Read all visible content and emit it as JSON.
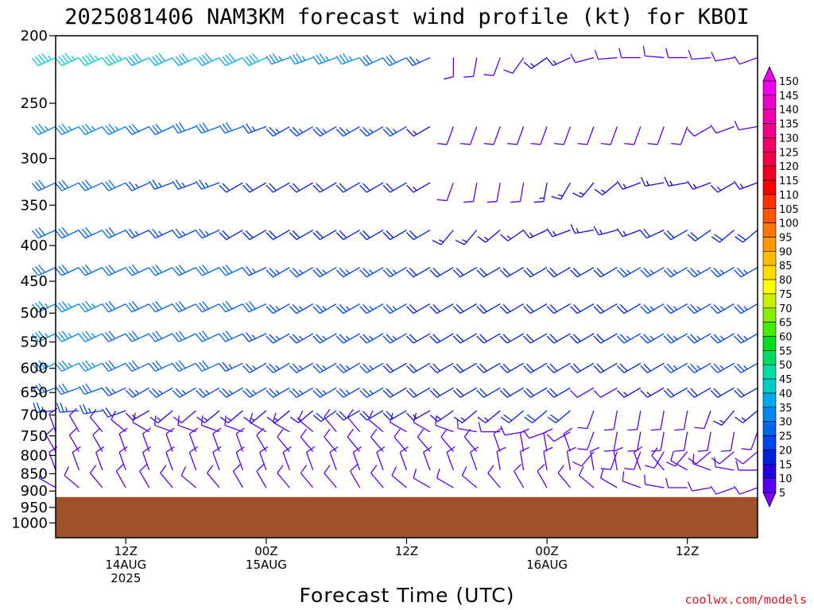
{
  "header": {
    "title": "2025081406 NAM3KM forecast wind profile (kt) for KBOI"
  },
  "footer": {
    "credit": "coolwx.com/models"
  },
  "colors": {
    "terrain": "#a0522d",
    "frame": "#000000",
    "credit": "#e0151b"
  },
  "chart_data": {
    "type": "wind-barb-time-height",
    "x_axis": {
      "label": "Forecast Time (UTC)",
      "range_hours": [
        0,
        60
      ],
      "ticks": [
        {
          "hour": 6,
          "lines": [
            "12Z",
            "14AUG",
            "2025"
          ]
        },
        {
          "hour": 18,
          "lines": [
            "00Z",
            "15AUG"
          ]
        },
        {
          "hour": 30,
          "lines": [
            "12Z"
          ]
        },
        {
          "hour": 42,
          "lines": [
            "00Z",
            "16AUG"
          ]
        },
        {
          "hour": 54,
          "lines": [
            "12Z"
          ]
        }
      ]
    },
    "y_axis": {
      "label": "",
      "units": "hPa",
      "scale": "log",
      "inverted": true,
      "range": [
        1050,
        200
      ],
      "ticks": [
        200,
        250,
        300,
        350,
        400,
        450,
        500,
        550,
        600,
        650,
        700,
        750,
        800,
        850,
        900,
        950,
        1000
      ]
    },
    "surface_pressure_hPa": 918,
    "colorbar": {
      "units": "kt",
      "levels": [
        5,
        10,
        15,
        20,
        25,
        30,
        35,
        40,
        45,
        50,
        55,
        60,
        65,
        70,
        75,
        80,
        85,
        90,
        95,
        100,
        105,
        110,
        115,
        120,
        125,
        130,
        135,
        140,
        145,
        150
      ],
      "colors": [
        "#7f00ff",
        "#5a00f2",
        "#2200dd",
        "#0022dd",
        "#0044ee",
        "#0066ee",
        "#0088ee",
        "#00aaee",
        "#00cccc",
        "#00ddaa",
        "#00dd66",
        "#00dd22",
        "#44ee00",
        "#88ee00",
        "#ccee00",
        "#ffff00",
        "#ffdd00",
        "#ffbb00",
        "#ff9900",
        "#ff7700",
        "#ff5500",
        "#ff3300",
        "#ff0000",
        "#ee0022",
        "#ee0044",
        "#ee0066",
        "#ee0088",
        "#ee00aa",
        "#ee00cc",
        "#ee00ee"
      ]
    },
    "barb_levels_hPa": [
      215,
      270,
      325,
      380,
      430,
      485,
      535,
      590,
      640,
      690,
      740,
      790,
      840,
      890
    ],
    "barb_time_hours": [
      0,
      2,
      4,
      6,
      8,
      10,
      12,
      14,
      16,
      18,
      20,
      22,
      24,
      26,
      28,
      30,
      32,
      34,
      36,
      38,
      40,
      42,
      44,
      46,
      48,
      50,
      52,
      54,
      56,
      58,
      60
    ],
    "wind_series": [
      {
        "level_hPa": 215,
        "dir_deg": [
          245,
          245,
          245,
          245,
          245,
          245,
          245,
          245,
          245,
          245,
          250,
          250,
          250,
          250,
          245,
          245,
          245,
          180,
          190,
          200,
          215,
          235,
          245,
          255,
          265,
          270,
          275,
          270,
          265,
          260,
          250
        ],
        "speed_kt": [
          45,
          45,
          45,
          45,
          40,
          40,
          40,
          40,
          40,
          40,
          35,
          35,
          35,
          35,
          30,
          30,
          25,
          10,
          10,
          10,
          10,
          15,
          15,
          10,
          10,
          10,
          10,
          10,
          10,
          10,
          10
        ]
      },
      {
        "level_hPa": 270,
        "dir_deg": [
          245,
          245,
          245,
          245,
          245,
          245,
          250,
          250,
          250,
          250,
          240,
          240,
          240,
          240,
          240,
          240,
          240,
          200,
          200,
          200,
          200,
          200,
          200,
          200,
          200,
          200,
          200,
          200,
          240,
          250,
          260
        ],
        "speed_kt": [
          35,
          35,
          35,
          35,
          30,
          30,
          30,
          30,
          30,
          25,
          25,
          25,
          25,
          25,
          25,
          25,
          15,
          10,
          10,
          10,
          10,
          10,
          10,
          10,
          10,
          10,
          10,
          10,
          10,
          10,
          10
        ]
      },
      {
        "level_hPa": 325,
        "dir_deg": [
          245,
          245,
          245,
          245,
          245,
          250,
          250,
          250,
          240,
          240,
          240,
          240,
          240,
          240,
          240,
          240,
          240,
          200,
          190,
          190,
          190,
          190,
          210,
          220,
          230,
          250,
          260,
          260,
          250,
          240,
          250
        ],
        "speed_kt": [
          30,
          30,
          30,
          30,
          25,
          25,
          25,
          25,
          20,
          20,
          20,
          20,
          20,
          20,
          20,
          20,
          15,
          10,
          10,
          10,
          10,
          15,
          15,
          15,
          15,
          15,
          15,
          15,
          15,
          15,
          15
        ]
      },
      {
        "level_hPa": 380,
        "dir_deg": [
          245,
          245,
          245,
          245,
          245,
          245,
          245,
          245,
          240,
          240,
          240,
          240,
          240,
          240,
          240,
          240,
          240,
          220,
          220,
          230,
          235,
          245,
          250,
          260,
          255,
          250,
          245,
          240,
          235,
          230,
          230
        ],
        "speed_kt": [
          30,
          30,
          30,
          30,
          25,
          25,
          25,
          25,
          20,
          20,
          20,
          20,
          20,
          20,
          20,
          20,
          20,
          15,
          15,
          15,
          15,
          15,
          15,
          15,
          15,
          15,
          20,
          20,
          20,
          20,
          20
        ]
      },
      {
        "level_hPa": 430,
        "dir_deg": [
          245,
          245,
          245,
          245,
          245,
          245,
          245,
          245,
          245,
          245,
          240,
          240,
          240,
          240,
          240,
          240,
          240,
          240,
          240,
          240,
          240,
          240,
          240,
          240,
          240,
          240,
          240,
          240,
          240,
          240,
          240
        ],
        "speed_kt": [
          30,
          30,
          30,
          30,
          30,
          30,
          30,
          30,
          30,
          25,
          25,
          25,
          25,
          25,
          25,
          25,
          20,
          20,
          20,
          20,
          20,
          20,
          20,
          20,
          20,
          25,
          25,
          25,
          25,
          25,
          25
        ]
      },
      {
        "level_hPa": 485,
        "dir_deg": [
          245,
          245,
          245,
          245,
          245,
          245,
          245,
          245,
          245,
          245,
          240,
          240,
          240,
          240,
          240,
          240,
          240,
          240,
          240,
          240,
          240,
          240,
          240,
          240,
          240,
          240,
          240,
          240,
          240,
          240,
          240
        ],
        "speed_kt": [
          35,
          35,
          35,
          30,
          30,
          30,
          30,
          30,
          30,
          30,
          25,
          25,
          25,
          25,
          25,
          25,
          20,
          20,
          20,
          20,
          20,
          20,
          20,
          20,
          20,
          20,
          25,
          25,
          25,
          25,
          25
        ]
      },
      {
        "level_hPa": 535,
        "dir_deg": [
          245,
          245,
          245,
          245,
          245,
          245,
          245,
          245,
          245,
          245,
          240,
          240,
          240,
          240,
          240,
          240,
          240,
          240,
          240,
          240,
          240,
          240,
          240,
          240,
          240,
          240,
          240,
          240,
          240,
          240,
          240
        ],
        "speed_kt": [
          35,
          35,
          35,
          30,
          30,
          30,
          30,
          30,
          30,
          25,
          25,
          25,
          25,
          25,
          25,
          25,
          20,
          20,
          20,
          20,
          20,
          20,
          20,
          20,
          20,
          25,
          25,
          25,
          25,
          25,
          25
        ]
      },
      {
        "level_hPa": 590,
        "dir_deg": [
          245,
          245,
          245,
          245,
          245,
          245,
          245,
          245,
          245,
          240,
          240,
          240,
          240,
          240,
          240,
          240,
          240,
          240,
          240,
          240,
          240,
          240,
          240,
          240,
          240,
          240,
          240,
          240,
          240,
          240,
          240
        ],
        "speed_kt": [
          35,
          35,
          35,
          30,
          30,
          30,
          30,
          30,
          25,
          25,
          25,
          25,
          25,
          25,
          25,
          20,
          20,
          20,
          20,
          20,
          20,
          20,
          20,
          20,
          20,
          20,
          20,
          25,
          25,
          25,
          25
        ]
      },
      {
        "level_hPa": 640,
        "dir_deg": [
          250,
          250,
          250,
          245,
          240,
          240,
          240,
          240,
          240,
          240,
          240,
          240,
          240,
          240,
          240,
          240,
          240,
          240,
          240,
          240,
          240,
          240,
          240,
          240,
          240,
          240,
          240,
          240,
          240,
          240,
          240
        ],
        "speed_kt": [
          30,
          30,
          30,
          25,
          25,
          25,
          25,
          25,
          25,
          25,
          25,
          25,
          25,
          25,
          25,
          20,
          20,
          20,
          20,
          20,
          20,
          20,
          20,
          10,
          10,
          15,
          15,
          20,
          20,
          20,
          20
        ]
      },
      {
        "level_hPa": 690,
        "dir_deg": [
          265,
          265,
          260,
          250,
          240,
          230,
          230,
          230,
          230,
          230,
          230,
          230,
          235,
          240,
          240,
          240,
          240,
          235,
          230,
          230,
          230,
          230,
          230,
          200,
          190,
          190,
          190,
          190,
          200,
          220,
          230
        ],
        "speed_kt": [
          25,
          25,
          25,
          20,
          15,
          15,
          10,
          15,
          15,
          15,
          15,
          15,
          20,
          20,
          20,
          20,
          15,
          15,
          15,
          15,
          20,
          20,
          20,
          10,
          10,
          10,
          10,
          10,
          10,
          15,
          15
        ]
      },
      {
        "level_hPa": 740,
        "dir_deg": [
          340,
          330,
          320,
          310,
          300,
          290,
          290,
          290,
          290,
          300,
          300,
          310,
          320,
          320,
          310,
          300,
          300,
          290,
          280,
          270,
          260,
          250,
          240,
          200,
          190,
          190,
          190,
          190,
          190,
          190,
          200
        ],
        "speed_kt": [
          10,
          10,
          10,
          10,
          10,
          10,
          10,
          10,
          10,
          10,
          10,
          10,
          10,
          10,
          10,
          10,
          10,
          10,
          10,
          10,
          10,
          10,
          10,
          10,
          10,
          10,
          10,
          10,
          10,
          10,
          10
        ]
      },
      {
        "level_hPa": 790,
        "dir_deg": [
          330,
          330,
          330,
          340,
          340,
          340,
          340,
          340,
          340,
          330,
          320,
          320,
          320,
          320,
          320,
          320,
          320,
          320,
          320,
          340,
          350,
          350,
          340,
          220,
          200,
          200,
          210,
          220,
          230,
          230,
          230
        ],
        "speed_kt": [
          10,
          10,
          10,
          10,
          10,
          10,
          10,
          10,
          10,
          10,
          10,
          10,
          10,
          10,
          10,
          10,
          10,
          10,
          10,
          10,
          10,
          10,
          10,
          10,
          10,
          10,
          10,
          10,
          10,
          10,
          10
        ]
      },
      {
        "level_hPa": 840,
        "dir_deg": [
          340,
          340,
          340,
          340,
          340,
          340,
          340,
          340,
          340,
          340,
          340,
          340,
          340,
          340,
          340,
          340,
          340,
          340,
          340,
          350,
          350,
          350,
          350,
          350,
          350,
          340,
          320,
          300,
          290,
          280,
          270
        ],
        "speed_kt": [
          10,
          10,
          10,
          10,
          10,
          10,
          10,
          10,
          10,
          10,
          10,
          10,
          10,
          10,
          10,
          10,
          10,
          10,
          10,
          10,
          10,
          10,
          10,
          10,
          10,
          10,
          10,
          10,
          10,
          10,
          10
        ]
      },
      {
        "level_hPa": 890,
        "dir_deg": [
          300,
          310,
          320,
          330,
          330,
          320,
          310,
          320,
          330,
          330,
          320,
          320,
          320,
          330,
          320,
          310,
          300,
          300,
          310,
          320,
          330,
          330,
          320,
          310,
          300,
          290,
          280,
          270,
          260,
          250,
          250
        ],
        "speed_kt": [
          10,
          10,
          10,
          10,
          10,
          10,
          10,
          10,
          10,
          10,
          10,
          10,
          10,
          10,
          10,
          10,
          10,
          10,
          10,
          10,
          10,
          10,
          10,
          10,
          10,
          10,
          10,
          10,
          10,
          10,
          10
        ]
      }
    ]
  }
}
